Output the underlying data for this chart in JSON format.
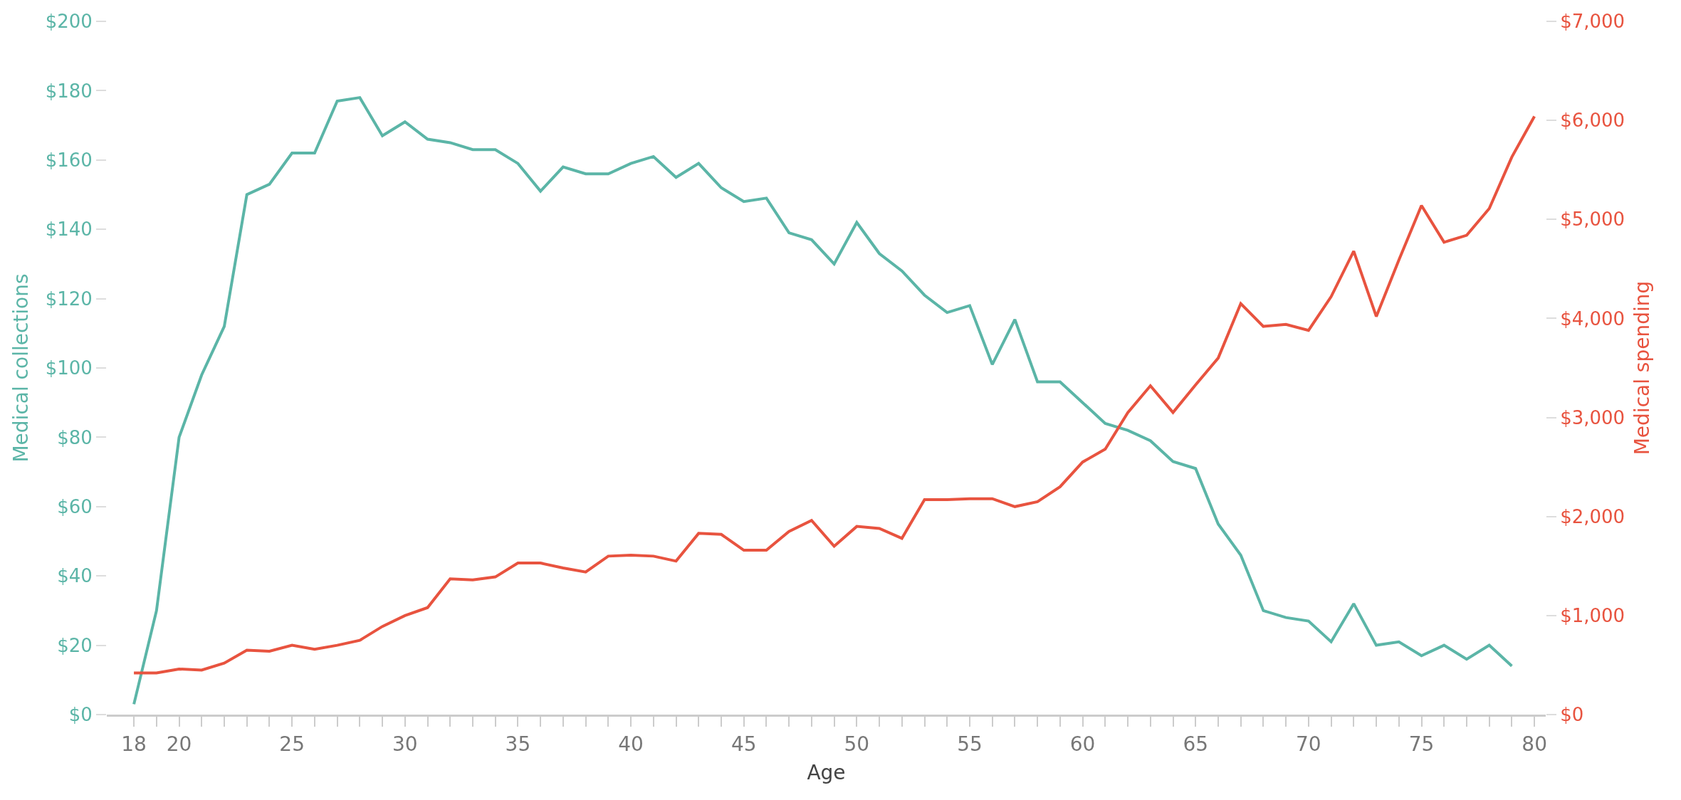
{
  "chart_data": {
    "type": "line",
    "xlabel": "Age",
    "ylabel": "Medical collections",
    "y2label": "Medical spending",
    "xlim": [
      16.8,
      80.5
    ],
    "xticks": [
      18,
      {
        "value": 19,
        "label": null
      },
      20,
      {
        "value": 21,
        "label": null
      },
      {
        "value": 22,
        "label": null
      },
      {
        "value": 23,
        "label": null
      },
      {
        "value": 24,
        "label": null
      },
      25,
      {
        "value": 26,
        "label": null
      },
      {
        "value": 27,
        "label": null
      },
      {
        "value": 28,
        "label": null
      },
      {
        "value": 29,
        "label": null
      },
      30,
      {
        "value": 31,
        "label": null
      },
      {
        "value": 32,
        "label": null
      },
      {
        "value": 33,
        "label": null
      },
      {
        "value": 34,
        "label": null
      },
      35,
      {
        "value": 36,
        "label": null
      },
      {
        "value": 37,
        "label": null
      },
      {
        "value": 38,
        "label": null
      },
      {
        "value": 39,
        "label": null
      },
      40,
      {
        "value": 41,
        "label": null
      },
      {
        "value": 42,
        "label": null
      },
      {
        "value": 43,
        "label": null
      },
      {
        "value": 44,
        "label": null
      },
      45,
      {
        "value": 46,
        "label": null
      },
      {
        "value": 47,
        "label": null
      },
      {
        "value": 48,
        "label": null
      },
      {
        "value": 49,
        "label": null
      },
      50,
      {
        "value": 51,
        "label": null
      },
      {
        "value": 52,
        "label": null
      },
      {
        "value": 53,
        "label": null
      },
      {
        "value": 54,
        "label": null
      },
      55,
      {
        "value": 56,
        "label": null
      },
      {
        "value": 57,
        "label": null
      },
      {
        "value": 58,
        "label": null
      },
      {
        "value": 59,
        "label": null
      },
      60,
      {
        "value": 61,
        "label": null
      },
      {
        "value": 62,
        "label": null
      },
      {
        "value": 63,
        "label": null
      },
      {
        "value": 64,
        "label": null
      },
      65,
      {
        "value": 66,
        "label": null
      },
      {
        "value": 67,
        "label": null
      },
      {
        "value": 68,
        "label": null
      },
      {
        "value": 69,
        "label": null
      },
      70,
      {
        "value": 71,
        "label": null
      },
      {
        "value": 72,
        "label": null
      },
      {
        "value": 73,
        "label": null
      },
      {
        "value": 74,
        "label": null
      },
      75,
      {
        "value": 76,
        "label": null
      },
      {
        "value": 77,
        "label": null
      },
      {
        "value": 78,
        "label": null
      },
      {
        "value": 79,
        "label": null
      },
      80
    ],
    "ylim": [
      0,
      200
    ],
    "yticks": [
      {
        "value": 0,
        "label": "$0"
      },
      {
        "value": 20,
        "label": "$20"
      },
      {
        "value": 40,
        "label": "$40"
      },
      {
        "value": 60,
        "label": "$60"
      },
      {
        "value": 80,
        "label": "$80"
      },
      {
        "value": 100,
        "label": "$100"
      },
      {
        "value": 120,
        "label": "$120"
      },
      {
        "value": 140,
        "label": "$140"
      },
      {
        "value": 160,
        "label": "$160"
      },
      {
        "value": 180,
        "label": "$180"
      },
      {
        "value": 200,
        "label": "$200"
      }
    ],
    "y2lim": [
      0,
      7000
    ],
    "y2ticks": [
      {
        "value": 0,
        "label": "$0"
      },
      {
        "value": 1000,
        "label": "$1,000"
      },
      {
        "value": 2000,
        "label": "$2,000"
      },
      {
        "value": 3000,
        "label": "$3,000"
      },
      {
        "value": 4000,
        "label": "$4,000"
      },
      {
        "value": 5000,
        "label": "$5,000"
      },
      {
        "value": 6000,
        "label": "$6,000"
      },
      {
        "value": 7000,
        "label": "$7,000"
      }
    ],
    "marker": "none",
    "line_style": "solid",
    "series": [
      {
        "color": "#5bb5a7",
        "x": [
          18,
          19,
          20,
          21,
          22,
          23,
          24,
          25,
          26,
          27,
          28,
          29,
          30,
          31,
          32,
          33,
          34,
          35,
          36,
          37,
          38,
          39,
          40,
          41,
          42,
          43,
          44,
          45,
          46,
          47,
          48,
          49,
          50,
          51,
          52,
          53,
          54,
          55,
          56,
          57,
          58,
          59,
          60,
          61,
          62,
          63,
          64,
          65,
          66,
          67,
          68,
          69,
          70,
          71,
          72,
          73,
          74,
          75,
          76,
          77,
          78,
          79
        ],
        "values": [
          3,
          30,
          80,
          98,
          112,
          150,
          153,
          162,
          162,
          177,
          178,
          167,
          171,
          166,
          165,
          163,
          163,
          159,
          151,
          158,
          156,
          156,
          159,
          161,
          155,
          159,
          152,
          148,
          149,
          139,
          137,
          130,
          142,
          133,
          128,
          121,
          116,
          118,
          101,
          114,
          96,
          96,
          90,
          84,
          82,
          79,
          73,
          71,
          55,
          46,
          30,
          28,
          27,
          21,
          32,
          20,
          21,
          17,
          20,
          16,
          20,
          14
        ]
      },
      {
        "color": "#e8533f",
        "axis": "y2",
        "x": [
          18,
          19,
          20,
          21,
          22,
          23,
          24,
          25,
          26,
          27,
          28,
          29,
          30,
          31,
          32,
          33,
          34,
          35,
          36,
          37,
          38,
          39,
          40,
          41,
          42,
          43,
          44,
          45,
          46,
          47,
          48,
          49,
          50,
          51,
          52,
          53,
          54,
          55,
          56,
          57,
          58,
          59,
          60,
          61,
          62,
          63,
          64,
          65,
          66,
          67,
          68,
          69,
          70,
          71,
          72,
          73,
          74,
          75,
          76,
          77,
          78,
          79,
          80
        ],
        "values": [
          420,
          420,
          460,
          450,
          520,
          650,
          640,
          700,
          660,
          700,
          750,
          890,
          1000,
          1080,
          1370,
          1360,
          1390,
          1530,
          1530,
          1480,
          1440,
          1600,
          1610,
          1600,
          1550,
          1830,
          1820,
          1660,
          1660,
          1850,
          1960,
          1700,
          1900,
          1880,
          1780,
          2170,
          2170,
          2180,
          2180,
          2100,
          2150,
          2300,
          2550,
          2680,
          3050,
          3320,
          3050,
          3330,
          3600,
          4150,
          3920,
          3940,
          3880,
          4220,
          4680,
          4020,
          4590,
          5140,
          4770,
          4840,
          5110,
          5630,
          6040
        ]
      }
    ]
  }
}
